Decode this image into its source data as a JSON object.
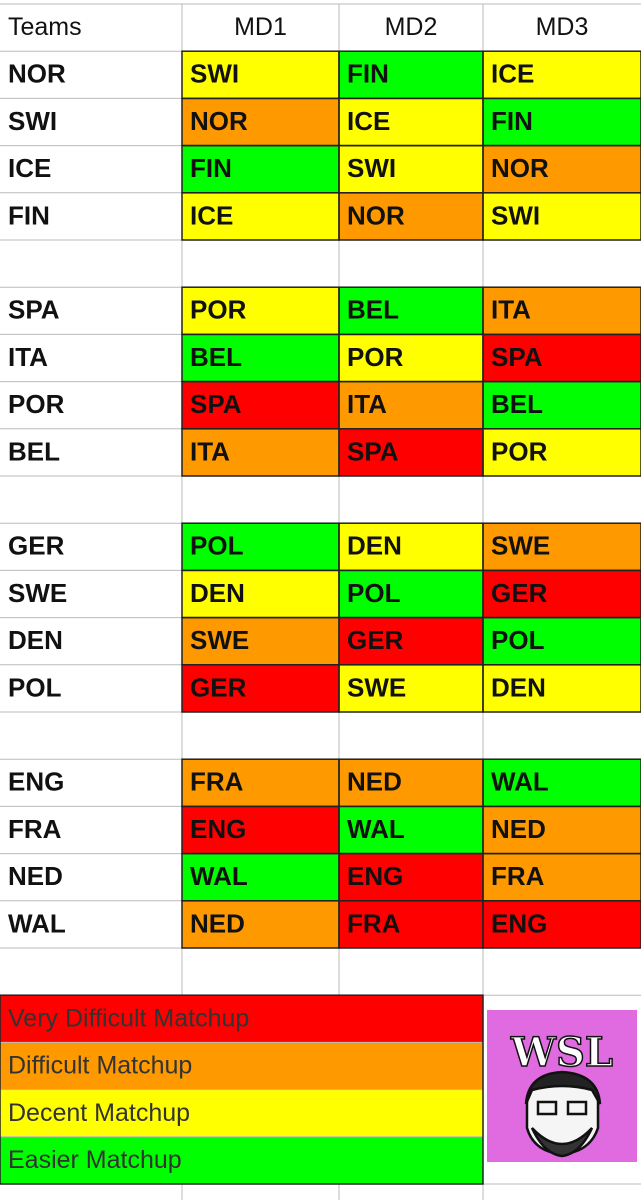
{
  "header": [
    "Teams",
    "MD1",
    "MD2",
    "MD3"
  ],
  "groups": [
    [
      {
        "team": "NOR",
        "fixtures": [
          {
            "opponent": "SWI",
            "color": "#ffff00"
          },
          {
            "opponent": "FIN",
            "color": "#00ff00"
          },
          {
            "opponent": "ICE",
            "color": "#ffff00"
          }
        ]
      },
      {
        "team": "SWI",
        "fixtures": [
          {
            "opponent": "NOR",
            "color": "#ff9900"
          },
          {
            "opponent": "ICE",
            "color": "#ffff00"
          },
          {
            "opponent": "FIN",
            "color": "#00ff00"
          }
        ]
      },
      {
        "team": "ICE",
        "fixtures": [
          {
            "opponent": "FIN",
            "color": "#00ff00"
          },
          {
            "opponent": "SWI",
            "color": "#ffff00"
          },
          {
            "opponent": "NOR",
            "color": "#ff9900"
          }
        ]
      },
      {
        "team": "FIN",
        "fixtures": [
          {
            "opponent": "ICE",
            "color": "#ffff00"
          },
          {
            "opponent": "NOR",
            "color": "#ff9900"
          },
          {
            "opponent": "SWI",
            "color": "#ffff00"
          }
        ]
      }
    ],
    [
      {
        "team": "SPA",
        "fixtures": [
          {
            "opponent": "POR",
            "color": "#ffff00"
          },
          {
            "opponent": "BEL",
            "color": "#00ff00"
          },
          {
            "opponent": "ITA",
            "color": "#ff9900"
          }
        ]
      },
      {
        "team": "ITA",
        "fixtures": [
          {
            "opponent": "BEL",
            "color": "#00ff00"
          },
          {
            "opponent": "POR",
            "color": "#ffff00"
          },
          {
            "opponent": "SPA",
            "color": "#ff0000"
          }
        ]
      },
      {
        "team": "POR",
        "fixtures": [
          {
            "opponent": "SPA",
            "color": "#ff0000"
          },
          {
            "opponent": "ITA",
            "color": "#ff9900"
          },
          {
            "opponent": "BEL",
            "color": "#00ff00"
          }
        ]
      },
      {
        "team": "BEL",
        "fixtures": [
          {
            "opponent": "ITA",
            "color": "#ff9900"
          },
          {
            "opponent": "SPA",
            "color": "#ff0000"
          },
          {
            "opponent": "POR",
            "color": "#ffff00"
          }
        ]
      }
    ],
    [
      {
        "team": "GER",
        "fixtures": [
          {
            "opponent": "POL",
            "color": "#00ff00"
          },
          {
            "opponent": "DEN",
            "color": "#ffff00"
          },
          {
            "opponent": "SWE",
            "color": "#ff9900"
          }
        ]
      },
      {
        "team": "SWE",
        "fixtures": [
          {
            "opponent": "DEN",
            "color": "#ffff00"
          },
          {
            "opponent": "POL",
            "color": "#00ff00"
          },
          {
            "opponent": "GER",
            "color": "#ff0000"
          }
        ]
      },
      {
        "team": "DEN",
        "fixtures": [
          {
            "opponent": "SWE",
            "color": "#ff9900"
          },
          {
            "opponent": "GER",
            "color": "#ff0000"
          },
          {
            "opponent": "POL",
            "color": "#00ff00"
          }
        ]
      },
      {
        "team": "POL",
        "fixtures": [
          {
            "opponent": "GER",
            "color": "#ff0000"
          },
          {
            "opponent": "SWE",
            "color": "#ffff00"
          },
          {
            "opponent": "DEN",
            "color": "#ffff00"
          }
        ]
      }
    ],
    [
      {
        "team": "ENG",
        "fixtures": [
          {
            "opponent": "FRA",
            "color": "#ff9900"
          },
          {
            "opponent": "NED",
            "color": "#ff9900"
          },
          {
            "opponent": "WAL",
            "color": "#00ff00"
          }
        ]
      },
      {
        "team": "FRA",
        "fixtures": [
          {
            "opponent": "ENG",
            "color": "#ff0000"
          },
          {
            "opponent": "WAL",
            "color": "#00ff00"
          },
          {
            "opponent": "NED",
            "color": "#ff9900"
          }
        ]
      },
      {
        "team": "NED",
        "fixtures": [
          {
            "opponent": "WAL",
            "color": "#00ff00"
          },
          {
            "opponent": "ENG",
            "color": "#ff0000"
          },
          {
            "opponent": "FRA",
            "color": "#ff9900"
          }
        ]
      },
      {
        "team": "WAL",
        "fixtures": [
          {
            "opponent": "NED",
            "color": "#ff9900"
          },
          {
            "opponent": "FRA",
            "color": "#ff0000"
          },
          {
            "opponent": "ENG",
            "color": "#ff0000"
          }
        ]
      }
    ]
  ],
  "legend": [
    {
      "label": "Very Difficult Matchup",
      "color": "#ff0000"
    },
    {
      "label": "Difficult Matchup",
      "color": "#ff9900"
    },
    {
      "label": "Decent Matchup",
      "color": "#ffff00"
    },
    {
      "label": "Easier Matchup",
      "color": "#00ff00"
    }
  ],
  "logo": "WSL"
}
